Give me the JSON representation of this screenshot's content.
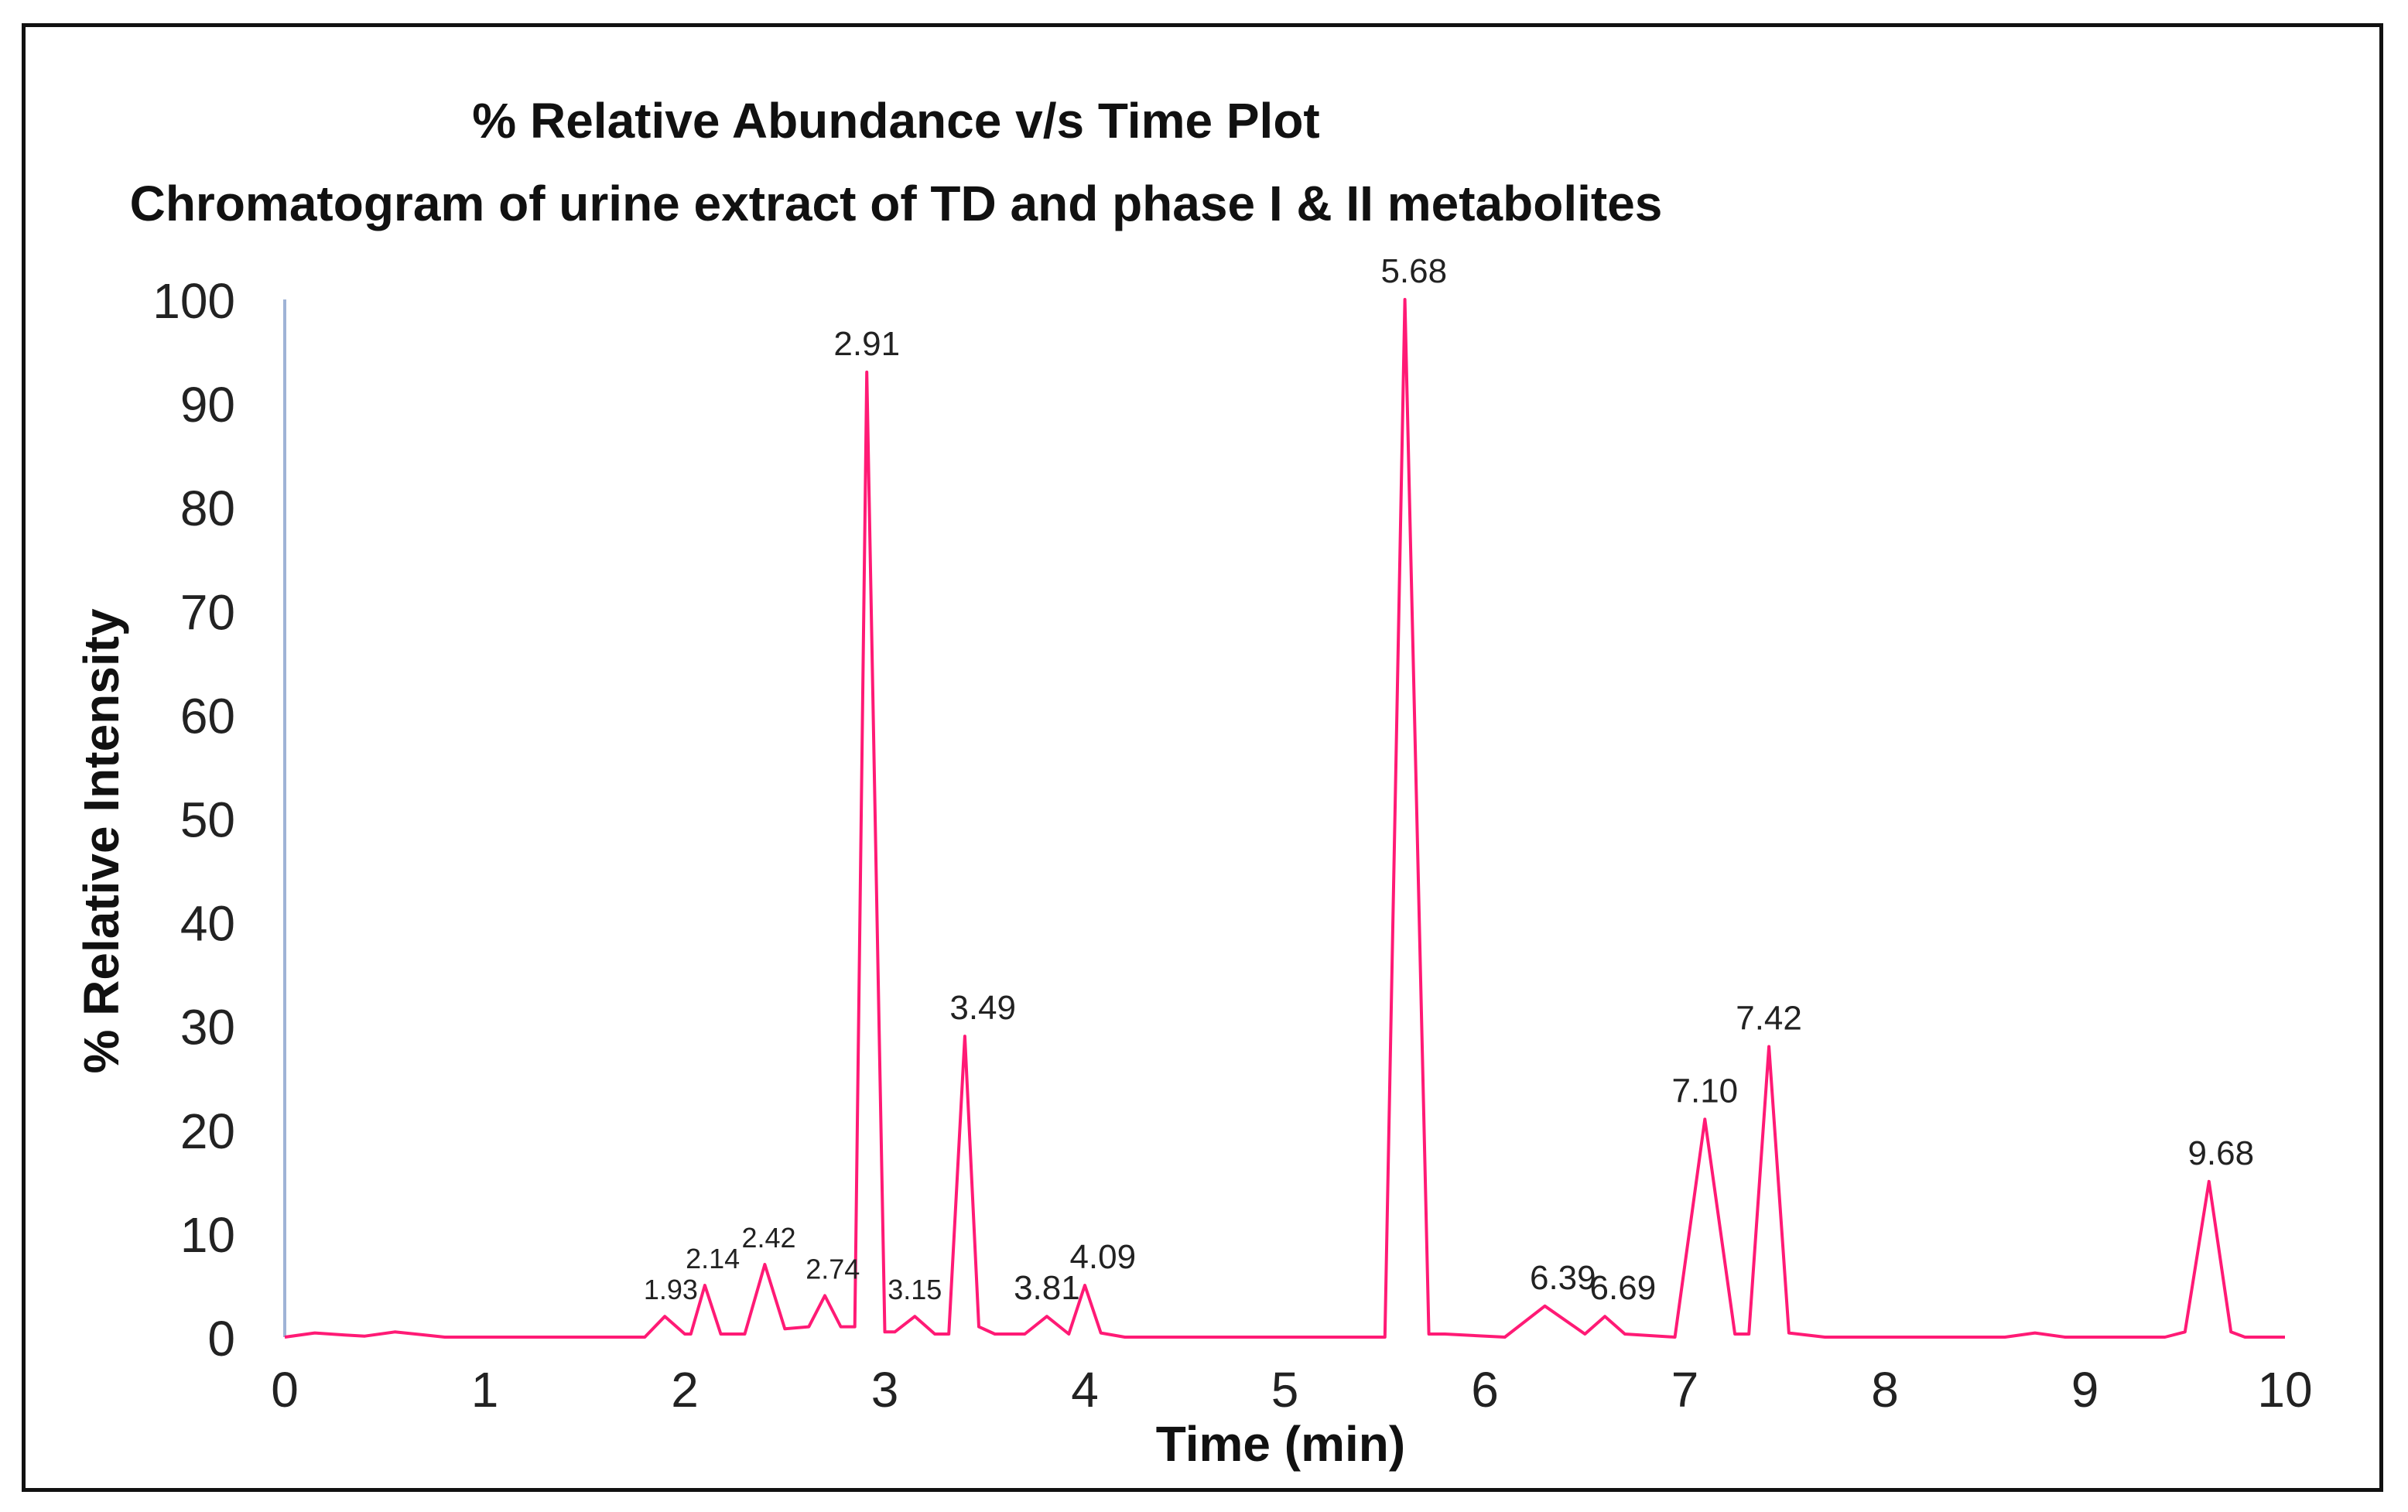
{
  "chart_data": {
    "type": "line",
    "title": "% Relative Abundance v/s Time Plot",
    "subtitle": "Chromatogram of urine extract of TD and phase I & II metabolites",
    "xlabel": "Time (min)",
    "ylabel": "% Relative Intensity",
    "xlim": [
      0,
      10
    ],
    "ylim": [
      0,
      100
    ],
    "x_ticks": [
      "0",
      "1",
      "2",
      "3",
      "4",
      "5",
      "6",
      "7",
      "8",
      "9",
      "10"
    ],
    "y_ticks": [
      "0",
      "10",
      "20",
      "30",
      "40",
      "50",
      "60",
      "70",
      "80",
      "90",
      "100"
    ],
    "grid": false,
    "line_color": "#ff1a75",
    "axis_color": "#9fb3d6",
    "series": [
      {
        "name": "Chromatogram",
        "x": [
          0,
          0.15,
          0.3,
          0.4,
          0.55,
          0.7,
          0.8,
          1.8,
          1.9,
          2.0,
          2.03,
          2.1,
          2.18,
          2.3,
          2.4,
          2.5,
          2.62,
          2.7,
          2.78,
          2.85,
          2.91,
          3.0,
          3.05,
          3.15,
          3.25,
          3.32,
          3.4,
          3.47,
          3.55,
          3.7,
          3.81,
          3.92,
          4.0,
          4.08,
          4.2,
          5.5,
          5.6,
          5.72,
          5.8,
          6.1,
          6.3,
          6.5,
          6.6,
          6.7,
          6.95,
          7.1,
          7.25,
          7.32,
          7.42,
          7.52,
          7.7,
          8.6,
          8.75,
          8.9,
          9.4,
          9.5,
          9.62,
          9.73,
          9.8,
          10.0
        ],
        "values": [
          0,
          0.4,
          0.2,
          0.1,
          0.5,
          0.2,
          0,
          0,
          2,
          0.3,
          0.3,
          5,
          0.3,
          0.3,
          7,
          0.8,
          1,
          4,
          1,
          1,
          93,
          0.5,
          0.5,
          2,
          0.3,
          0.3,
          29,
          1,
          0.3,
          0.3,
          2,
          0.3,
          5,
          0.4,
          0,
          0,
          100,
          0.3,
          0.3,
          0,
          3,
          0.3,
          2,
          0.3,
          0,
          21,
          0.3,
          0.3,
          28,
          0.4,
          0,
          0,
          0.4,
          0,
          0,
          0.5,
          15,
          0.5,
          0,
          0
        ]
      }
    ],
    "peak_labels": [
      {
        "x": 1.93,
        "y": 2,
        "label": "1.93"
      },
      {
        "x": 2.14,
        "y": 5,
        "label": "2.14"
      },
      {
        "x": 2.42,
        "y": 7,
        "label": "2.42"
      },
      {
        "x": 2.74,
        "y": 4,
        "label": "2.74"
      },
      {
        "x": 2.91,
        "y": 93,
        "label": "2.91"
      },
      {
        "x": 3.15,
        "y": 2,
        "label": "3.15"
      },
      {
        "x": 3.49,
        "y": 29,
        "label": "3.49"
      },
      {
        "x": 3.81,
        "y": 2,
        "label": "3.81"
      },
      {
        "x": 4.09,
        "y": 5,
        "label": "4.09"
      },
      {
        "x": 5.68,
        "y": 100,
        "label": "5.68"
      },
      {
        "x": 6.39,
        "y": 3,
        "label": "6.39"
      },
      {
        "x": 6.69,
        "y": 2,
        "label": "6.69"
      },
      {
        "x": 7.1,
        "y": 21,
        "label": "7.10"
      },
      {
        "x": 7.42,
        "y": 28,
        "label": "7.42"
      },
      {
        "x": 9.68,
        "y": 15,
        "label": "9.68"
      }
    ]
  }
}
